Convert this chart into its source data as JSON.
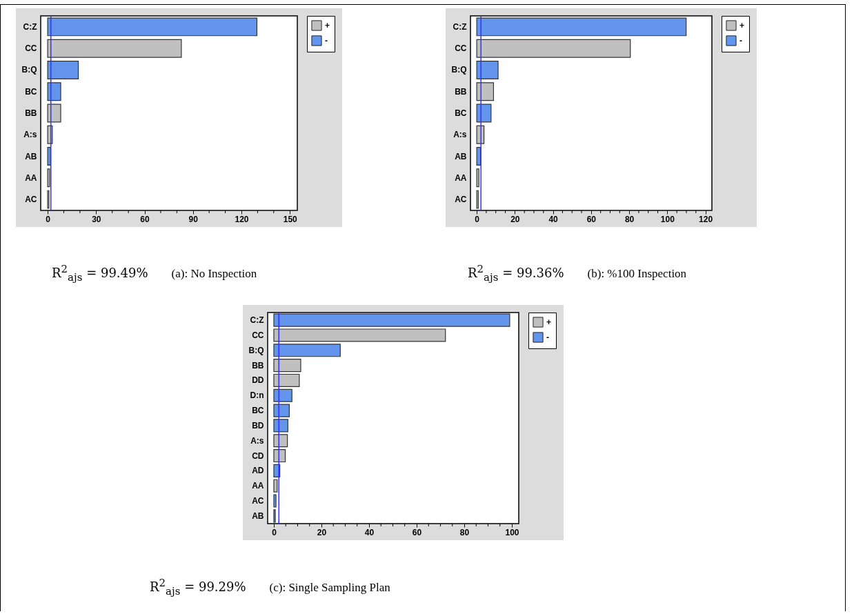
{
  "chart_data": [
    {
      "type": "bar",
      "orientation": "horizontal",
      "categories": [
        "C:Z",
        "CC",
        "B:Q",
        "BC",
        "BB",
        "A:s",
        "AB",
        "AA",
        "AC"
      ],
      "series": [
        {
          "name": "+",
          "color": "#c0c0c0",
          "values": [
            null,
            82.8,
            null,
            null,
            8.1,
            2.9,
            null,
            1.2,
            0.8
          ]
        },
        {
          "name": "-",
          "color": "#6495ed",
          "values": [
            129.6,
            null,
            19.0,
            8.1,
            null,
            null,
            1.8,
            null,
            null
          ]
        }
      ],
      "xlim": [
        -4.3,
        154.6
      ],
      "xticks": [
        0,
        {
          "value": 10,
          "label": null
        },
        {
          "value": 20,
          "label": null
        },
        30,
        {
          "value": 40,
          "label": null
        },
        {
          "value": 50,
          "label": null
        },
        60,
        {
          "value": 70,
          "label": null
        },
        {
          "value": 80,
          "label": null
        },
        90,
        {
          "value": 100,
          "label": null
        },
        {
          "value": 110,
          "label": null
        },
        120,
        {
          "value": 130,
          "label": null
        },
        {
          "value": 140,
          "label": null
        },
        150
      ],
      "ref_lines": [
        {
          "axis": "x",
          "value": 2.0,
          "color": "#3333ff"
        }
      ],
      "grid": false,
      "legend": "top right",
      "annotations": [
        "R$^{2}$$_{ajs}$ = 99.49%",
        "(a): No Inspection"
      ]
    },
    {
      "type": "bar",
      "orientation": "horizontal",
      "categories": [
        "C:Z",
        "CC",
        "B:Q",
        "BB",
        "BC",
        "A:s",
        "AB",
        "AA",
        "AC"
      ],
      "series": [
        {
          "name": "+",
          "color": "#c0c0c0",
          "values": [
            null,
            80.6,
            null,
            8.8,
            null,
            3.8,
            null,
            1.1,
            0.8
          ]
        },
        {
          "name": "-",
          "color": "#6495ed",
          "values": [
            109.9,
            null,
            11.2,
            null,
            7.5,
            null,
            2.0,
            null,
            null
          ]
        }
      ],
      "xlim": [
        -3.3,
        123.4
      ],
      "xticks": [
        0,
        {
          "value": 5,
          "label": null
        },
        {
          "value": 10,
          "label": null
        },
        {
          "value": 15,
          "label": null
        },
        20,
        {
          "value": 25,
          "label": null
        },
        {
          "value": 30,
          "label": null
        },
        {
          "value": 35,
          "label": null
        },
        40,
        {
          "value": 45,
          "label": null
        },
        {
          "value": 50,
          "label": null
        },
        {
          "value": 55,
          "label": null
        },
        60,
        {
          "value": 65,
          "label": null
        },
        {
          "value": 70,
          "label": null
        },
        {
          "value": 75,
          "label": null
        },
        80,
        {
          "value": 85,
          "label": null
        },
        {
          "value": 90,
          "label": null
        },
        {
          "value": 95,
          "label": null
        },
        100,
        {
          "value": 105,
          "label": null
        },
        {
          "value": 110,
          "label": null
        },
        {
          "value": 115,
          "label": null
        },
        120
      ],
      "ref_lines": [
        {
          "axis": "x",
          "value": 2.2,
          "color": "#3333ff"
        }
      ],
      "grid": false,
      "legend": "top right",
      "annotations": [
        "R$^{2}$$_{ajs}$ = 99.36%",
        "(b): %100 Inspection"
      ]
    },
    {
      "type": "bar",
      "orientation": "horizontal",
      "categories": [
        "C:Z",
        "CC",
        "B:Q",
        "BB",
        "DD",
        "D:n",
        "BC",
        "BD",
        "A:s",
        "CD",
        "AD",
        "AA",
        "AC",
        "AB"
      ],
      "series": [
        {
          "name": "+",
          "color": "#c0c0c0",
          "values": [
            null,
            72.1,
            null,
            11.3,
            10.7,
            null,
            null,
            null,
            5.7,
            4.8,
            null,
            1.4,
            null,
            null
          ]
        },
        {
          "name": "-",
          "color": "#6495ed",
          "values": [
            99.1,
            null,
            27.9,
            null,
            null,
            7.6,
            6.5,
            5.9,
            null,
            null,
            2.5,
            null,
            0.9,
            0.6
          ]
        }
      ],
      "xlim": [
        -2.6,
        102.9
      ],
      "xticks": [
        0,
        {
          "value": 5,
          "label": null
        },
        {
          "value": 10,
          "label": null
        },
        {
          "value": 15,
          "label": null
        },
        20,
        {
          "value": 25,
          "label": null
        },
        {
          "value": 30,
          "label": null
        },
        {
          "value": 35,
          "label": null
        },
        40,
        {
          "value": 45,
          "label": null
        },
        {
          "value": 50,
          "label": null
        },
        {
          "value": 55,
          "label": null
        },
        60,
        {
          "value": 65,
          "label": null
        },
        {
          "value": 70,
          "label": null
        },
        {
          "value": 75,
          "label": null
        },
        80,
        {
          "value": 85,
          "label": null
        },
        {
          "value": 90,
          "label": null
        },
        {
          "value": 95,
          "label": null
        },
        100
      ],
      "ref_lines": [
        {
          "axis": "x",
          "value": 2.1,
          "color": "#3333ff"
        }
      ],
      "grid": false,
      "legend": "top right",
      "annotations": [
        "R$^{2}$$_{ajs}$ = 99.29%",
        "(c): Single Sampling Plan"
      ]
    }
  ]
}
